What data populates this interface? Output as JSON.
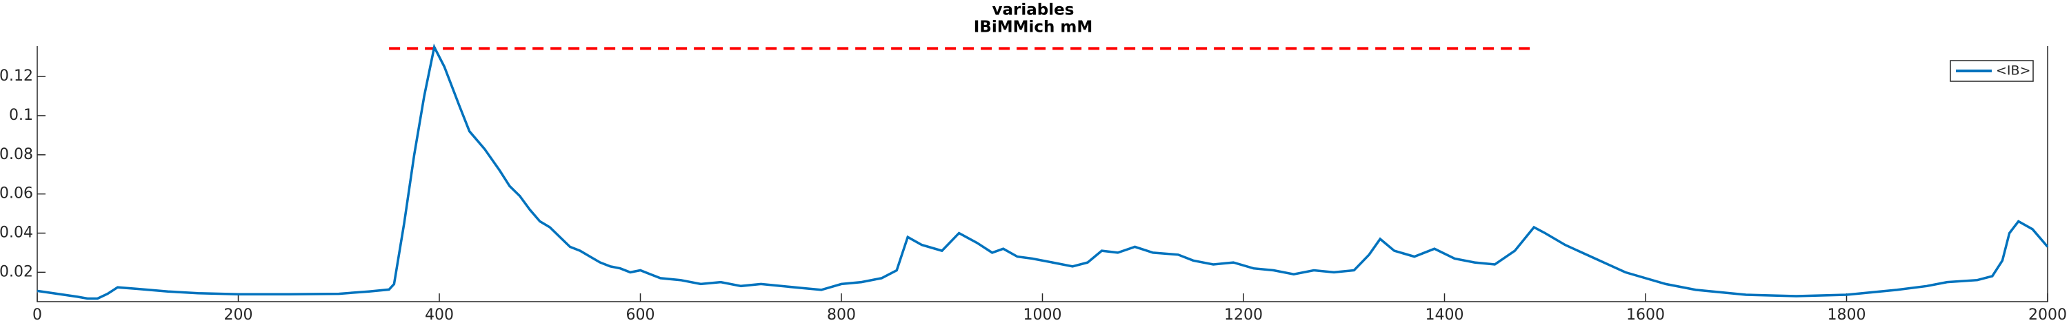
{
  "chart_data": {
    "type": "line",
    "title": "variables",
    "subtitle": "IBiMMich mM",
    "x": [
      0,
      20,
      40,
      50,
      60,
      70,
      80,
      100,
      130,
      160,
      200,
      250,
      300,
      330,
      350,
      355,
      365,
      375,
      385,
      395,
      405,
      420,
      430,
      445,
      460,
      470,
      480,
      490,
      500,
      510,
      520,
      530,
      540,
      550,
      560,
      570,
      580,
      590,
      600,
      610,
      620,
      640,
      660,
      680,
      700,
      720,
      740,
      760,
      780,
      800,
      820,
      840,
      855,
      866,
      880,
      900,
      917,
      935,
      950,
      961,
      975,
      990,
      1010,
      1030,
      1045,
      1059,
      1075,
      1092,
      1110,
      1135,
      1150,
      1170,
      1190,
      1210,
      1230,
      1250,
      1270,
      1290,
      1310,
      1325,
      1336,
      1350,
      1370,
      1390,
      1410,
      1430,
      1450,
      1470,
      1489,
      1500,
      1520,
      1550,
      1580,
      1620,
      1650,
      1700,
      1750,
      1800,
      1850,
      1880,
      1900,
      1930,
      1945,
      1955,
      1962,
      1971,
      1985,
      2000
    ],
    "series": [
      {
        "name": "<IB>",
        "color": "#0072bd",
        "values": [
          0.0105,
          0.009,
          0.0075,
          0.0066,
          0.0066,
          0.009,
          0.0123,
          0.0115,
          0.0102,
          0.0093,
          0.0088,
          0.0088,
          0.009,
          0.0102,
          0.0112,
          0.014,
          0.045,
          0.08,
          0.11,
          0.135,
          0.125,
          0.105,
          0.092,
          0.083,
          0.072,
          0.064,
          0.059,
          0.052,
          0.046,
          0.043,
          0.038,
          0.033,
          0.031,
          0.028,
          0.025,
          0.023,
          0.022,
          0.02,
          0.021,
          0.019,
          0.017,
          0.016,
          0.014,
          0.015,
          0.013,
          0.014,
          0.013,
          0.012,
          0.011,
          0.014,
          0.015,
          0.017,
          0.021,
          0.038,
          0.034,
          0.031,
          0.04,
          0.035,
          0.03,
          0.032,
          0.028,
          0.027,
          0.025,
          0.023,
          0.025,
          0.031,
          0.03,
          0.033,
          0.03,
          0.029,
          0.026,
          0.024,
          0.025,
          0.022,
          0.021,
          0.019,
          0.021,
          0.02,
          0.021,
          0.029,
          0.037,
          0.031,
          0.028,
          0.032,
          0.027,
          0.025,
          0.024,
          0.031,
          0.043,
          0.04,
          0.034,
          0.027,
          0.02,
          0.014,
          0.011,
          0.0085,
          0.0078,
          0.0085,
          0.011,
          0.013,
          0.015,
          0.016,
          0.018,
          0.026,
          0.04,
          0.046,
          0.042,
          0.033
        ]
      }
    ],
    "reference_line": {
      "x": [
        350,
        1490
      ],
      "y": 0.1343,
      "color": "#ff0000"
    },
    "xlim": [
      0,
      2000
    ],
    "xticks": [
      0,
      200,
      400,
      600,
      800,
      1000,
      1200,
      1400,
      1600,
      1800,
      2000
    ],
    "ylim": [
      0.005,
      0.1355
    ],
    "yticks": [
      0.02,
      0.04,
      0.06,
      0.08,
      0.1,
      0.12
    ],
    "legend": "top-right"
  }
}
